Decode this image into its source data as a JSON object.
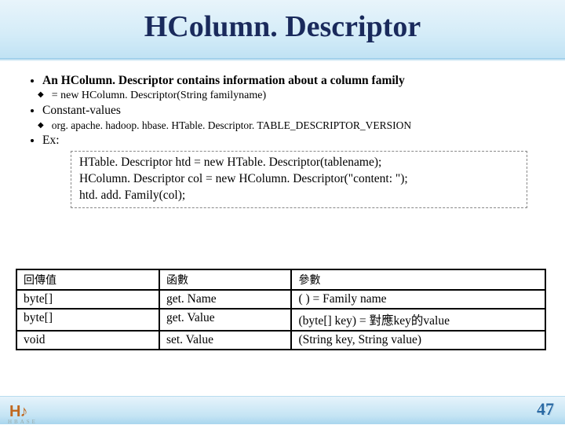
{
  "title": "HColumn. Descriptor",
  "bullets": {
    "b1": "An HColumn. Descriptor contains information about a column family",
    "b1a": "= new HColumn. Descriptor(String familyname)",
    "b2": "Constant-values",
    "b2a": "org. apache. hadoop. hbase. HTable. Descriptor. TABLE_DESCRIPTOR_VERSION",
    "b3": "Ex:"
  },
  "example": {
    "l1": "HTable. Descriptor htd = new HTable. Descriptor(tablename);",
    "l2": "HColumn. Descriptor col = new HColumn. Descriptor(\"content: \");",
    "l3": "htd. add. Family(col);"
  },
  "table": {
    "headers": {
      "h1": "回傳值",
      "h2": "函數",
      "h3": "參數"
    },
    "rows": [
      {
        "c1": "byte[]",
        "c2": "get. Name",
        "c3": "( )  = Family name"
      },
      {
        "c1": "byte[]",
        "c2": "get. Value",
        "c3": "(byte[] key)  = 對應key的value"
      },
      {
        "c1": "void",
        "c2": "set. Value",
        "c3": "(String key, String value)"
      }
    ]
  },
  "page_number": "47",
  "logo_text": "H♪"
}
